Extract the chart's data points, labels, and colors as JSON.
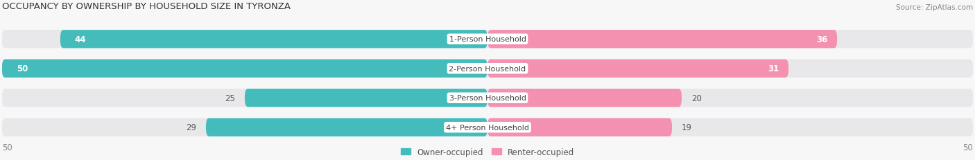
{
  "title": "OCCUPANCY BY OWNERSHIP BY HOUSEHOLD SIZE IN TYRONZA",
  "source": "Source: ZipAtlas.com",
  "categories": [
    "1-Person Household",
    "2-Person Household",
    "3-Person Household",
    "4+ Person Household"
  ],
  "owner_values": [
    44,
    50,
    25,
    29
  ],
  "renter_values": [
    36,
    31,
    20,
    19
  ],
  "owner_color": "#45BCBC",
  "renter_color": "#F490B0",
  "bar_bg_color": "#E8E8EA",
  "bg_color": "#F7F7F7",
  "max_val": 50,
  "legend_owner": "Owner-occupied",
  "legend_renter": "Renter-occupied",
  "axis_label_left": "50",
  "axis_label_right": "50",
  "title_fontsize": 9.5,
  "bar_label_fontsize": 8.5,
  "category_fontsize": 8,
  "legend_fontsize": 8.5,
  "source_fontsize": 7.5
}
